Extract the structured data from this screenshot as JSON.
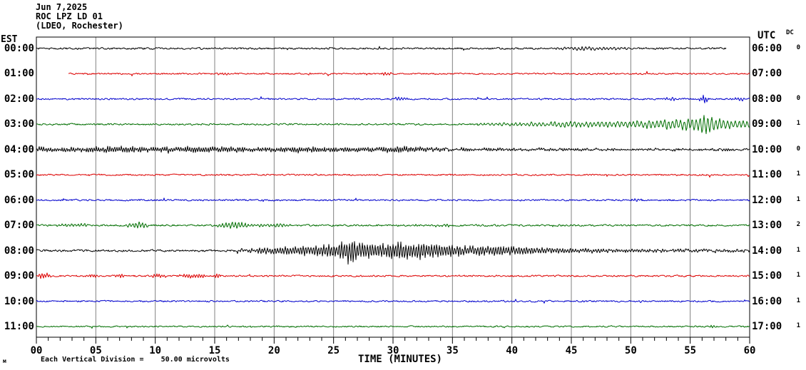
{
  "header": {
    "date": "Jun 7,2025",
    "station": "ROC LPZ LD 01",
    "location": "(LDEO, Rochester)"
  },
  "axes": {
    "left_timezone_label": "EST",
    "right_timezone_label": "UTC",
    "dc_column_label": "DC",
    "x_axis_label": "TIME (MINUTES)",
    "x_ticks": [
      "00",
      "05",
      "10",
      "15",
      "20",
      "25",
      "30",
      "35",
      "40",
      "45",
      "50",
      "55",
      "60"
    ]
  },
  "footer": {
    "scale_note": "Each Vertical Division =    50.00 microvolts",
    "watermark_glyph": "м"
  },
  "colors": {
    "black": "#000000",
    "red": "#dd0000",
    "blue": "#0000cc",
    "green": "#006e00",
    "grid": "#808080",
    "frame": "#000000"
  },
  "chart_data": {
    "type": "line",
    "subtype": "seismogram-helicorder",
    "title": "ROC LPZ LD 01 (LDEO, Rochester) Jun 7,2025",
    "xlabel": "TIME (MINUTES)",
    "x_range_minutes": [
      0,
      60
    ],
    "minutes_per_line": 60,
    "grid": "vertical-every-5-min",
    "vertical_division_microvolts": 50.0,
    "rows": [
      {
        "est": "00:00",
        "utc": "06:00",
        "dc": "0",
        "color": "black",
        "start_min": 0,
        "end_min": 58,
        "base_amp": 1.1,
        "events": [
          {
            "t0": 43.5,
            "t1": 50,
            "amp": 1.8,
            "period": 5
          }
        ]
      },
      {
        "est": "01:00",
        "utc": "07:00",
        "dc": "",
        "color": "red",
        "start_min": 2.7,
        "end_min": 60,
        "base_amp": 0.9,
        "events": [
          {
            "t0": 15.5,
            "t1": 16.3,
            "amp": 1.8,
            "period": 4
          },
          {
            "t0": 29,
            "t1": 30,
            "amp": 1.6,
            "period": 4
          }
        ]
      },
      {
        "est": "02:00",
        "utc": "08:00",
        "dc": "0",
        "color": "blue",
        "start_min": 0,
        "end_min": 60,
        "base_amp": 1.0,
        "events": [
          {
            "t0": 30,
            "t1": 31.3,
            "amp": 1.8,
            "period": 4
          },
          {
            "t0": 52.8,
            "t1": 54,
            "amp": 2.2,
            "period": 4
          },
          {
            "t0": 55.7,
            "t1": 56.6,
            "amp": 4.0,
            "period": 3.5
          },
          {
            "t0": 58.6,
            "t1": 59.6,
            "amp": 2.6,
            "period": 4
          }
        ]
      },
      {
        "est": "03:00",
        "utc": "09:00",
        "dc": "1",
        "color": "green",
        "start_min": 0,
        "end_min": 60,
        "base_amp": 1.0,
        "events": [
          {
            "env": [
              [
                37,
                1
              ],
              [
                42,
                2.5
              ],
              [
                46,
                3
              ],
              [
                49,
                3.5
              ],
              [
                52,
                4.5
              ],
              [
                54,
                6
              ],
              [
                55.5,
                8
              ],
              [
                56.3,
                11
              ],
              [
                57.2,
                6
              ],
              [
                58.5,
                4.5
              ],
              [
                60,
                3.5
              ]
            ],
            "period": 5.5
          }
        ]
      },
      {
        "est": "04:00",
        "utc": "10:00",
        "dc": "0",
        "color": "black",
        "start_min": 0,
        "end_min": 60,
        "base_amp": 1.2,
        "events": [
          {
            "env": [
              [
                0,
                2.8
              ],
              [
                3,
                2.2
              ],
              [
                5,
                3
              ],
              [
                8,
                3.2
              ],
              [
                11,
                2.5
              ],
              [
                13,
                3.3
              ],
              [
                16,
                2.8
              ],
              [
                19,
                2.5
              ],
              [
                22,
                3
              ],
              [
                26,
                2.6
              ],
              [
                28,
                2.2
              ],
              [
                31,
                3.2
              ],
              [
                33,
                2.5
              ],
              [
                35,
                1.5
              ],
              [
                40,
                1
              ],
              [
                60,
                0.6
              ]
            ],
            "period": 3.2
          }
        ]
      },
      {
        "est": "05:00",
        "utc": "11:00",
        "dc": "1",
        "color": "red",
        "start_min": 0,
        "end_min": 60,
        "base_amp": 0.9,
        "events": []
      },
      {
        "est": "06:00",
        "utc": "12:00",
        "dc": "1",
        "color": "blue",
        "start_min": 0,
        "end_min": 60,
        "base_amp": 1.0,
        "events": [
          {
            "t0": 50,
            "t1": 51,
            "amp": 1.5,
            "period": 4
          }
        ]
      },
      {
        "est": "07:00",
        "utc": "13:00",
        "dc": "2",
        "color": "green",
        "start_min": 0,
        "end_min": 60,
        "base_amp": 1.1,
        "events": [
          {
            "t0": 1.6,
            "t1": 4.6,
            "amp": 1.8,
            "period": 4.5
          },
          {
            "t0": 7.3,
            "t1": 9.7,
            "amp": 3.2,
            "period": 4.5
          },
          {
            "t0": 15,
            "t1": 18,
            "amp": 3.6,
            "period": 4.5
          },
          {
            "t0": 18,
            "t1": 21.5,
            "amp": 1.6,
            "period": 4.5
          },
          {
            "t0": 33,
            "t1": 35,
            "amp": 1.4,
            "period": 4.5
          }
        ]
      },
      {
        "est": "08:00",
        "utc": "14:00",
        "dc": "1",
        "color": "black",
        "start_min": 0,
        "end_min": 60,
        "base_amp": 1.3,
        "events": [
          {
            "env": [
              [
                17,
                1.5
              ],
              [
                19,
                3
              ],
              [
                21,
                4.5
              ],
              [
                23,
                5.5
              ],
              [
                25,
                7
              ],
              [
                26,
                12
              ],
              [
                26.8,
                14
              ],
              [
                27.6,
                9
              ],
              [
                28.6,
                7.5
              ],
              [
                29.6,
                9
              ],
              [
                30.6,
                10.5
              ],
              [
                31.6,
                7.5
              ],
              [
                32.6,
                9.5
              ],
              [
                33.8,
                7
              ],
              [
                35,
                6.5
              ],
              [
                36.5,
                5.5
              ],
              [
                38,
                6
              ],
              [
                40,
                5
              ],
              [
                42,
                3.5
              ],
              [
                44,
                3
              ],
              [
                46,
                2.2
              ],
              [
                50,
                1.6
              ],
              [
                55,
                1.2
              ],
              [
                60,
                1
              ]
            ],
            "period": 3.6
          }
        ]
      },
      {
        "est": "09:00",
        "utc": "15:00",
        "dc": "1",
        "color": "red",
        "start_min": 0,
        "end_min": 60,
        "base_amp": 1.0,
        "events": [
          {
            "t0": 0,
            "t1": 1.3,
            "amp": 2.8,
            "period": 3.5
          },
          {
            "t0": 4,
            "t1": 5.2,
            "amp": 2.0,
            "period": 3.5
          },
          {
            "t0": 6.5,
            "t1": 7.6,
            "amp": 2.0,
            "period": 3.5
          },
          {
            "t0": 9.5,
            "t1": 11,
            "amp": 2.2,
            "period": 3.5
          },
          {
            "t0": 12,
            "t1": 14.5,
            "amp": 2.6,
            "period": 3.5
          },
          {
            "t0": 14.8,
            "t1": 15.6,
            "amp": 2.0,
            "period": 3.5
          }
        ]
      },
      {
        "est": "10:00",
        "utc": "16:00",
        "dc": "1",
        "color": "blue",
        "start_min": 0,
        "end_min": 60,
        "base_amp": 0.95,
        "events": []
      },
      {
        "est": "11:00",
        "utc": "17:00",
        "dc": "1",
        "color": "green",
        "start_min": 0,
        "end_min": 60,
        "base_amp": 0.85,
        "events": [
          {
            "t0": 56.5,
            "t1": 57.5,
            "amp": 1.3,
            "period": 4
          }
        ]
      }
    ]
  }
}
